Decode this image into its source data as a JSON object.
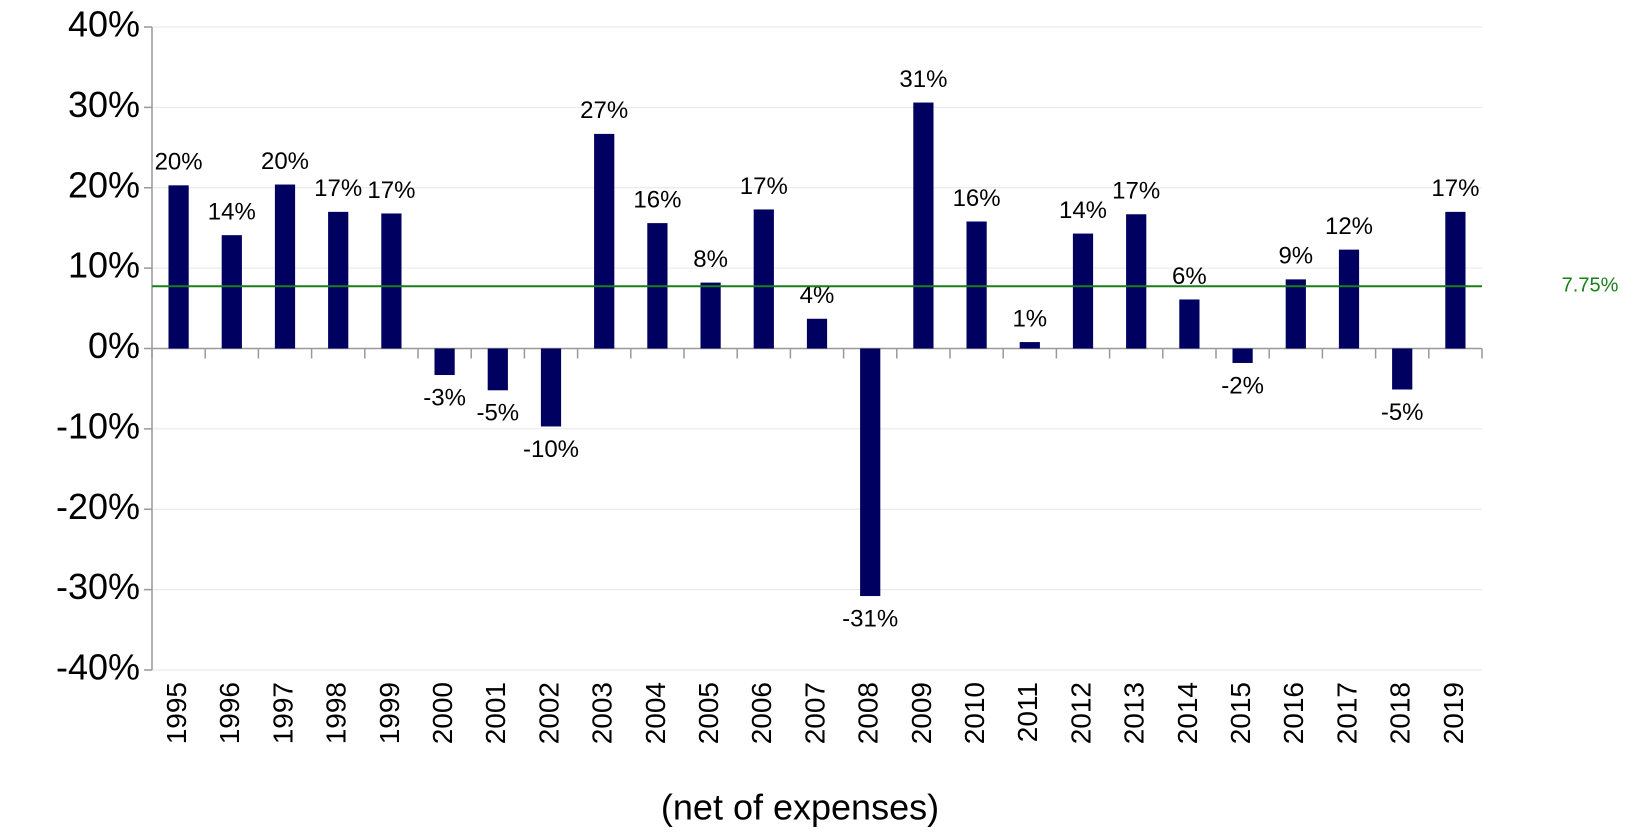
{
  "chart_data": {
    "type": "bar",
    "x_axis_label": "(net of expenses)",
    "categories": [
      "1995",
      "1996",
      "1997",
      "1998",
      "1999",
      "2000",
      "2001",
      "2002",
      "2003",
      "2004",
      "2005",
      "2006",
      "2007",
      "2008",
      "2009",
      "2010",
      "2011",
      "2012",
      "2013",
      "2014",
      "2015",
      "2016",
      "2017",
      "2018",
      "2019"
    ],
    "values": [
      20.3,
      14.1,
      20.4,
      17.0,
      16.8,
      -3.3,
      -5.2,
      -9.7,
      26.7,
      15.6,
      8.2,
      17.3,
      3.7,
      -30.8,
      30.6,
      15.8,
      0.8,
      14.3,
      16.7,
      6.1,
      -1.8,
      8.6,
      12.3,
      -5.1,
      17.0
    ],
    "value_labels": [
      "20%",
      "14%",
      "20%",
      "17%",
      "17%",
      "-3%",
      "-5%",
      "-10%",
      "27%",
      "16%",
      "8%",
      "17%",
      "4%",
      "-31%",
      "31%",
      "16%",
      "1%",
      "14%",
      "17%",
      "6%",
      "-2%",
      "9%",
      "12%",
      "-5%",
      "17%"
    ],
    "color": "#000060",
    "ylim": [
      -40,
      40
    ],
    "yticks": [
      {
        "value": -40,
        "label": "-40%"
      },
      {
        "value": -30,
        "label": "-30%"
      },
      {
        "value": -20,
        "label": "-20%"
      },
      {
        "value": -10,
        "label": "-10%"
      },
      {
        "value": 0,
        "label": "0%"
      },
      {
        "value": 10,
        "label": "10%"
      },
      {
        "value": 20,
        "label": "20%"
      },
      {
        "value": 30,
        "label": "30%"
      },
      {
        "value": 40,
        "label": "40%"
      }
    ],
    "grid": true,
    "reference_line": {
      "value": 7.75,
      "label": "7.75%",
      "color": "#1a7f1a"
    }
  }
}
